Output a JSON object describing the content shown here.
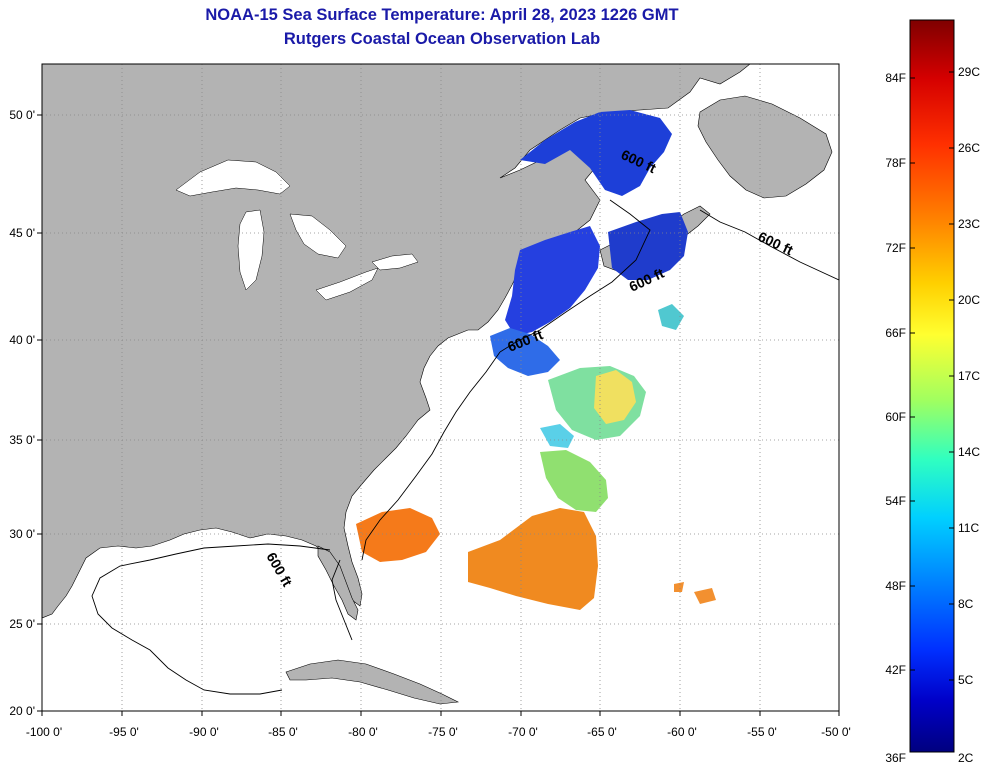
{
  "title": "NOAA-15 Sea Surface Temperature:  April 28, 2023 1226 GMT",
  "subtitle": "Rutgers Coastal Ocean Observation Lab",
  "map": {
    "lon_ticks": [
      "-100 0'",
      "-95 0'",
      "-90 0'",
      "-85 0'",
      "-80 0'",
      "-75 0'",
      "-70 0'",
      "-65 0'",
      "-60 0'",
      "-55 0'",
      "-50 0'"
    ],
    "lat_ticks": [
      "50 0'",
      "45 0'",
      "40 0'",
      "35 0'",
      "30 0'",
      "25 0'",
      "20 0'"
    ],
    "isobath_labels": [
      "600 ft",
      "600 ft",
      "600 ft",
      "600 ft",
      "600 ft"
    ],
    "colors": {
      "land": "#b3b3b3",
      "ocean": "#ffffff",
      "grid": "#888888",
      "isobath": "#000000"
    }
  },
  "colorbar": {
    "fahrenheit_labels": [
      "84F",
      "78F",
      "72F",
      "66F",
      "60F",
      "54F",
      "48F",
      "42F",
      "36F"
    ],
    "celsius_labels": [
      "29C",
      "26C",
      "23C",
      "20C",
      "17C",
      "14C",
      "11C",
      "8C",
      "5C",
      "2C"
    ],
    "colors_top_to_bottom": [
      "#7f0000",
      "#d50000",
      "#ff3000",
      "#ff8000",
      "#ffd000",
      "#ffff30",
      "#a0ff60",
      "#30ffc0",
      "#00d0ff",
      "#0080ff",
      "#0030ff",
      "#0000c8",
      "#00007f"
    ]
  }
}
